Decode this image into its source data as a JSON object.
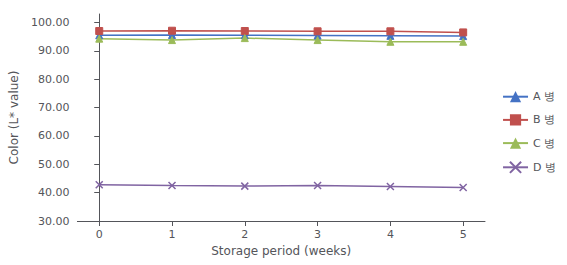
{
  "chart_data": {
    "type": "line",
    "x": [
      0,
      1,
      2,
      3,
      4,
      5
    ],
    "series": [
      {
        "name": "A 병",
        "color": "#4472C4",
        "marker": "triangle",
        "values": [
          95.5,
          95.6,
          95.5,
          95.4,
          95.3,
          95.2
        ]
      },
      {
        "name": "B 병",
        "color": "#C0504D",
        "marker": "square",
        "values": [
          97.0,
          97.1,
          97.0,
          96.9,
          96.9,
          96.5
        ]
      },
      {
        "name": "C 병",
        "color": "#9BBB59",
        "marker": "triangle",
        "values": [
          94.3,
          93.8,
          94.5,
          93.8,
          93.2,
          93.2
        ]
      },
      {
        "name": "D 병",
        "color": "#8064A2",
        "marker": "x",
        "values": [
          42.8,
          42.5,
          42.3,
          42.5,
          42.2,
          41.8
        ]
      }
    ],
    "xlabel": "Storage period (weeks)",
    "ylabel": "Color (L* value)",
    "xlim": [
      -0.3,
      5.3
    ],
    "xticks": [
      0,
      1,
      2,
      3,
      4,
      5
    ],
    "ylim": [
      30.0,
      103.0
    ],
    "yticks": [
      {
        "value": 30,
        "label": "30.00"
      },
      {
        "value": 40,
        "label": "40.00"
      },
      {
        "value": 50,
        "label": "50.00"
      },
      {
        "value": 60,
        "label": "60.00"
      },
      {
        "value": 70,
        "label": "70.00"
      },
      {
        "value": 80,
        "label": "80.00"
      },
      {
        "value": 90,
        "label": "90.00"
      },
      {
        "value": 100,
        "label": "100.00"
      }
    ],
    "grid": false,
    "legend": "right"
  }
}
